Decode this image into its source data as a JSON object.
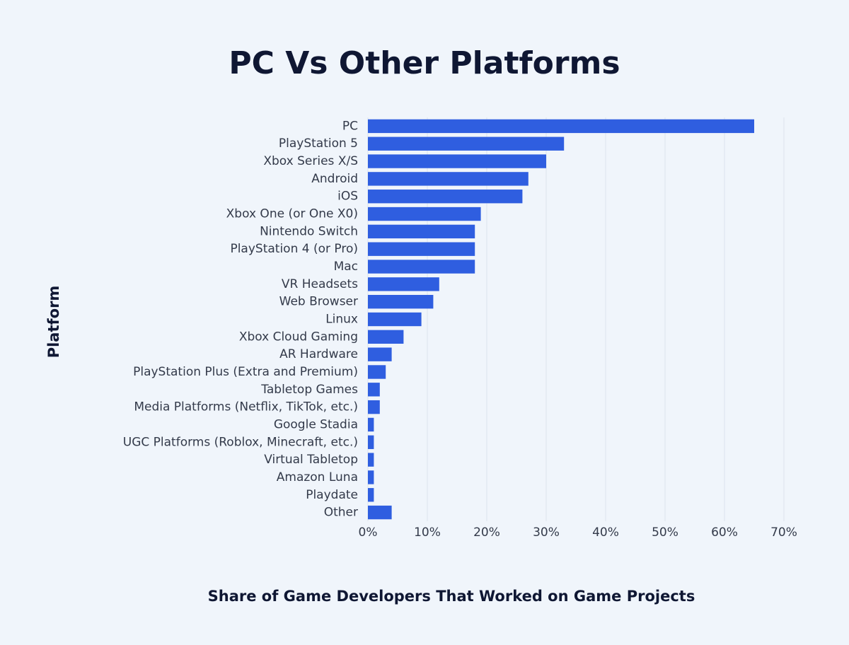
{
  "chart_data": {
    "type": "barh",
    "title": "PC Vs Other Platforms",
    "x_label": "Share of Game Developers That Worked on Game Projects",
    "y_label": "Platform",
    "categories": [
      "PC",
      "PlayStation 5",
      "Xbox Series X/S",
      "Android",
      "iOS",
      "Xbox One (or One X0)",
      "Nintendo Switch",
      "PlayStation 4 (or Pro)",
      "Mac",
      "VR Headsets",
      "Web Browser",
      "Linux",
      "Xbox Cloud Gaming",
      "AR Hardware",
      "PlayStation Plus (Extra and Premium)",
      "Tabletop Games",
      "Media Platforms (Netflix, TikTok, etc.)",
      "Google Stadia",
      "UGC Platforms (Roblox, Minecraft, etc.)",
      "Virtual Tabletop",
      "Amazon Luna",
      "Playdate",
      "Other"
    ],
    "values": [
      65,
      33,
      30,
      27,
      26,
      19,
      18,
      18,
      18,
      12,
      11,
      9,
      6,
      4,
      3,
      2,
      2,
      1,
      1,
      1,
      1,
      1,
      4
    ],
    "color": "#2f5ee0",
    "xlim": [
      0,
      70
    ],
    "xticks": [
      {
        "value": 0,
        "label": "0%"
      },
      {
        "value": 10,
        "label": "10%"
      },
      {
        "value": 20,
        "label": "20%"
      },
      {
        "value": 30,
        "label": "30%"
      },
      {
        "value": 40,
        "label": "40%"
      },
      {
        "value": 50,
        "label": "50%"
      },
      {
        "value": 60,
        "label": "60%"
      },
      {
        "value": 70,
        "label": "70%"
      }
    ],
    "grid": true
  }
}
